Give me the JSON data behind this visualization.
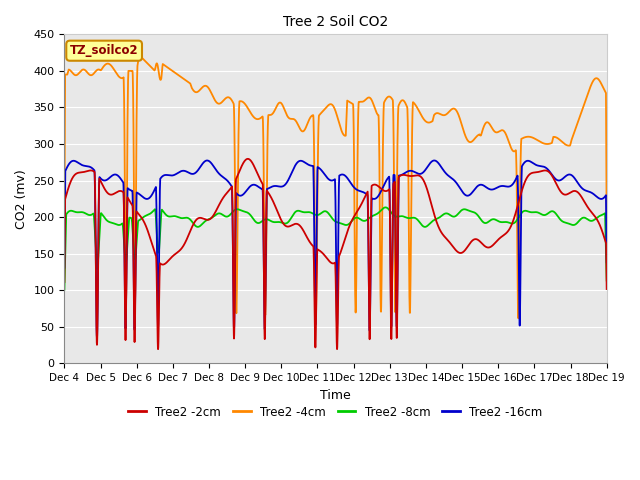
{
  "title": "Tree 2 Soil CO2",
  "xlabel": "Time",
  "ylabel": "CO2 (mv)",
  "ylim": [
    0,
    450
  ],
  "plot_bg": "#e8e8e8",
  "label_box": "TZ_soilco2",
  "label_box_color": "#ffff99",
  "label_box_border": "#cc8800",
  "series_colors": {
    "2cm": "#cc0000",
    "4cm": "#ff8800",
    "8cm": "#00cc00",
    "16cm": "#0000cc"
  },
  "legend_labels": [
    "Tree2 -2cm",
    "Tree2 -4cm",
    "Tree2 -8cm",
    "Tree2 -16cm"
  ],
  "xtick_labels": [
    "Dec 4",
    "Dec 5",
    "Dec 6",
    "Dec 7",
    "Dec 8",
    "Dec 9",
    "Dec 10",
    "Dec 11",
    "Dec 12",
    "Dec 13",
    "Dec 14",
    "Dec 15",
    "Dec 16",
    "Dec 17",
    "Dec 18",
    "Dec 19"
  ],
  "ytick_values": [
    0,
    50,
    100,
    150,
    200,
    250,
    300,
    350,
    400,
    450
  ]
}
